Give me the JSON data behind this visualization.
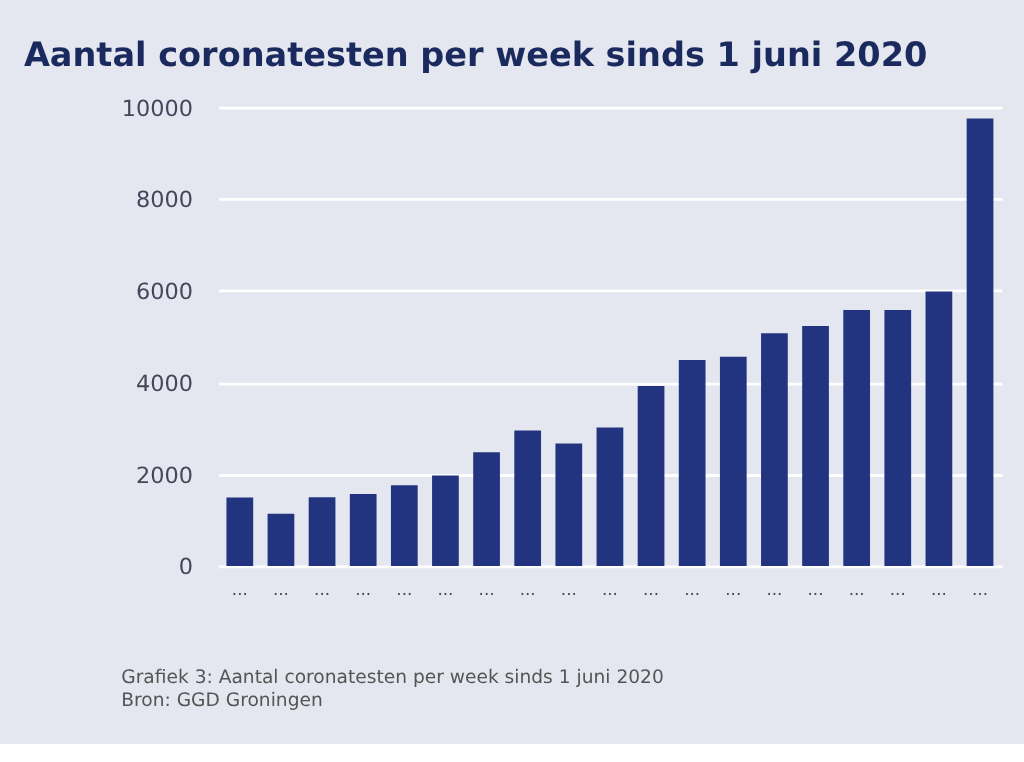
{
  "chart_data": {
    "type": "bar",
    "title": "Aantal coronatesten per week sinds 1 juni 2020",
    "categories": [
      "...",
      "...",
      "...",
      "...",
      "...",
      "...",
      "...",
      "...",
      "...",
      "...",
      "...",
      "...",
      "...",
      "...",
      "...",
      "...",
      "...",
      "...",
      "..."
    ],
    "values": [
      1490,
      1140,
      1500,
      1570,
      1760,
      1970,
      2480,
      2950,
      2670,
      3020,
      3920,
      4490,
      4560,
      5070,
      5230,
      5580,
      5580,
      5980,
      9750
    ],
    "color": "#22347f",
    "ylim": [
      0,
      10000
    ],
    "yticks": [
      0,
      2000,
      4000,
      6000,
      8000,
      10000
    ],
    "grid": "y",
    "annotations": [
      "Grafiek 3: Aantal coronatesten per week sinds 1 juni 2020",
      "Bron: GGD Groningen"
    ]
  }
}
